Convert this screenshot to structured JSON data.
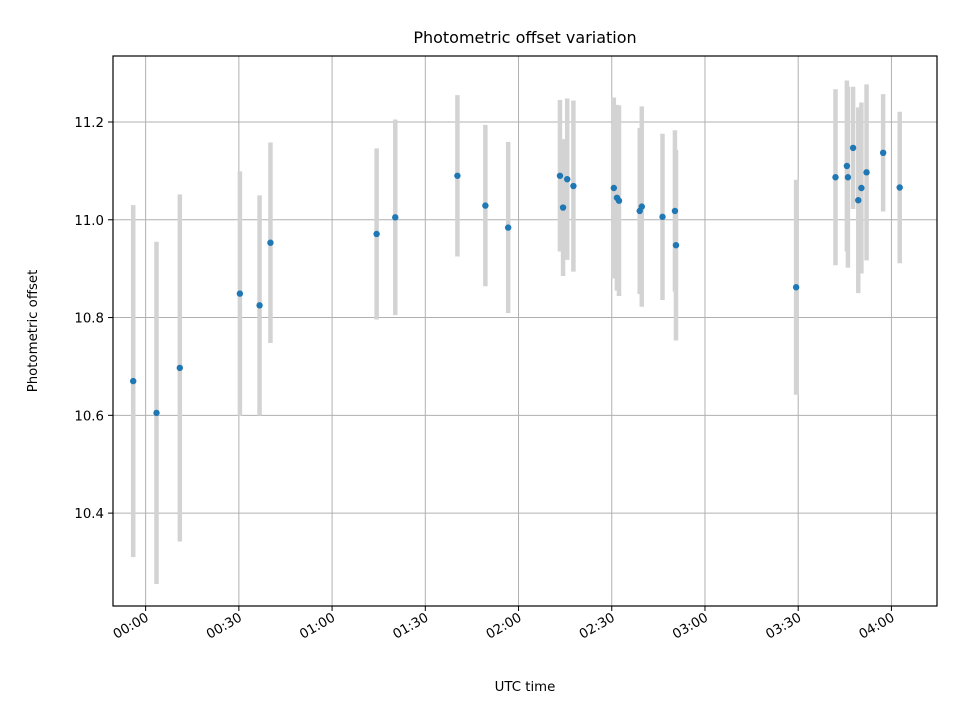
{
  "chart_data": {
    "type": "scatter",
    "title": "Photometric offset variation",
    "xlabel": "UTC time",
    "ylabel": "Photometric offset",
    "x_ticks": [
      "00:00",
      "00:30",
      "01:00",
      "01:30",
      "02:00",
      "02:30",
      "03:00",
      "03:30",
      "04:00"
    ],
    "y_ticks": [
      "10.4",
      "10.6",
      "10.8",
      "11.0",
      "11.2"
    ],
    "xlim": [
      "23:49:30",
      "04:14:40"
    ],
    "ylim": [
      10.21,
      11.335
    ],
    "grid": true,
    "point_color": "#1f77b4",
    "errorbar_color": "#d3d3d3",
    "points": [
      {
        "x": "23:56:00",
        "y": 10.67,
        "err": 0.36
      },
      {
        "x": "00:03:30",
        "y": 10.605,
        "err": 0.35
      },
      {
        "x": "00:11:00",
        "y": 10.697,
        "err": 0.355
      },
      {
        "x": "00:30:20",
        "y": 10.849,
        "err": 0.25
      },
      {
        "x": "00:36:40",
        "y": 10.825,
        "err": 0.225
      },
      {
        "x": "00:40:10",
        "y": 10.953,
        "err": 0.205
      },
      {
        "x": "01:14:20",
        "y": 10.971,
        "err": 0.175
      },
      {
        "x": "01:20:20",
        "y": 11.005,
        "err": 0.2
      },
      {
        "x": "01:40:20",
        "y": 11.09,
        "err": 0.165
      },
      {
        "x": "01:49:20",
        "y": 11.029,
        "err": 0.165
      },
      {
        "x": "01:56:40",
        "y": 10.984,
        "err": 0.175
      },
      {
        "x": "02:13:20",
        "y": 11.09,
        "err": 0.155
      },
      {
        "x": "02:14:20",
        "y": 11.025,
        "err": 0.14
      },
      {
        "x": "02:15:40",
        "y": 11.083,
        "err": 0.165
      },
      {
        "x": "02:17:40",
        "y": 11.069,
        "err": 0.175
      },
      {
        "x": "02:30:40",
        "y": 11.065,
        "err": 0.185
      },
      {
        "x": "02:31:40",
        "y": 11.045,
        "err": 0.19
      },
      {
        "x": "02:32:20",
        "y": 11.039,
        "err": 0.195
      },
      {
        "x": "02:39:00",
        "y": 11.018,
        "err": 0.17
      },
      {
        "x": "02:39:40",
        "y": 11.027,
        "err": 0.205
      },
      {
        "x": "02:46:20",
        "y": 11.006,
        "err": 0.17
      },
      {
        "x": "02:50:20",
        "y": 11.018,
        "err": 0.165
      },
      {
        "x": "02:50:40",
        "y": 10.948,
        "err": 0.195
      },
      {
        "x": "03:29:20",
        "y": 10.862,
        "err": 0.22
      },
      {
        "x": "03:42:00",
        "y": 11.087,
        "err": 0.18
      },
      {
        "x": "03:45:40",
        "y": 11.11,
        "err": 0.175
      },
      {
        "x": "03:46:00",
        "y": 11.087,
        "err": 0.185
      },
      {
        "x": "03:47:40",
        "y": 11.147,
        "err": 0.125
      },
      {
        "x": "03:49:20",
        "y": 11.04,
        "err": 0.19
      },
      {
        "x": "03:50:20",
        "y": 11.065,
        "err": 0.175
      },
      {
        "x": "03:52:00",
        "y": 11.097,
        "err": 0.18
      },
      {
        "x": "03:57:20",
        "y": 11.137,
        "err": 0.12
      },
      {
        "x": "04:02:40",
        "y": 11.066,
        "err": 0.155
      }
    ]
  }
}
